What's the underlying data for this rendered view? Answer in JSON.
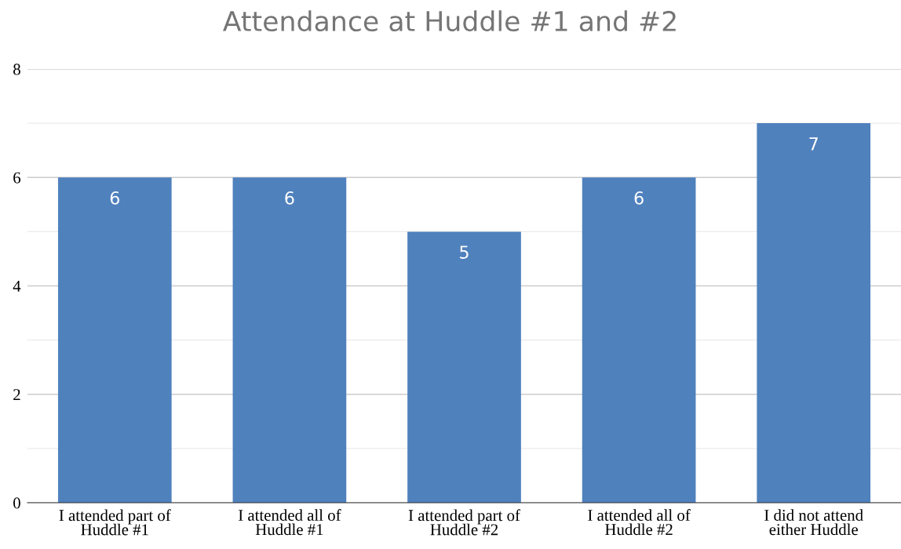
{
  "chart_data": {
    "type": "bar",
    "title": "Attendance at Huddle #1 and #2",
    "categories": [
      "I attended part of Huddle #1",
      "I attended all of Huddle #1",
      "I attended part of Huddle #2",
      "I attended all of Huddle #2",
      "I did not attend either Huddle"
    ],
    "values": [
      6,
      6,
      5,
      6,
      7
    ],
    "color": "#4f81bd",
    "ylim": [
      0,
      8
    ],
    "yticks": [
      0,
      {
        "value": 1,
        "label": null
      },
      2,
      {
        "value": 3,
        "label": null
      },
      4,
      {
        "value": 5,
        "label": null
      },
      6,
      {
        "value": 7,
        "label": null
      },
      8
    ],
    "grid": "y",
    "data_labels": true
  }
}
